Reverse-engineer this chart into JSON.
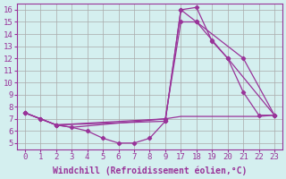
{
  "bg_color": "#d4efef",
  "line_color": "#993399",
  "grid_color": "#aaaaaa",
  "x_labels": [
    "0",
    "1",
    "2",
    "3",
    "4",
    "5",
    "6",
    "7",
    "8",
    "9",
    "17",
    "18",
    "19",
    "20",
    "21",
    "22",
    "23"
  ],
  "line1_x": [
    0,
    1,
    2,
    3,
    4,
    5,
    6,
    7,
    8,
    9,
    10,
    11,
    12,
    13,
    14,
    15,
    16
  ],
  "line1_y": [
    7.5,
    7.0,
    6.5,
    6.3,
    6.0,
    5.4,
    5.0,
    5.0,
    5.4,
    6.8,
    16.0,
    16.2,
    13.4,
    12.0,
    9.2,
    7.3,
    7.3
  ],
  "line2_x": [
    0,
    1,
    2,
    9,
    10,
    11,
    14,
    16
  ],
  "line2_y": [
    7.5,
    7.0,
    6.5,
    6.8,
    16.0,
    15.0,
    12.0,
    7.3
  ],
  "line3_x": [
    0,
    2,
    9,
    10,
    11,
    12,
    13,
    16
  ],
  "line3_y": [
    7.5,
    6.5,
    7.0,
    15.0,
    15.0,
    13.5,
    12.0,
    7.3
  ],
  "line4_x": [
    0,
    2,
    3,
    9,
    10,
    11,
    12,
    13,
    14,
    15,
    16
  ],
  "line4_y": [
    7.5,
    6.5,
    6.3,
    7.0,
    7.2,
    7.2,
    7.2,
    7.2,
    7.2,
    7.2,
    7.3
  ],
  "yticks": [
    5,
    6,
    7,
    8,
    9,
    10,
    11,
    12,
    13,
    14,
    15,
    16
  ],
  "ylim": [
    4.5,
    16.5
  ],
  "xlim": [
    -0.5,
    16.5
  ],
  "xlabel": "Windchill (Refroidissement éolien,°C)",
  "tick_fontsize": 6.5,
  "label_fontsize": 7.0
}
